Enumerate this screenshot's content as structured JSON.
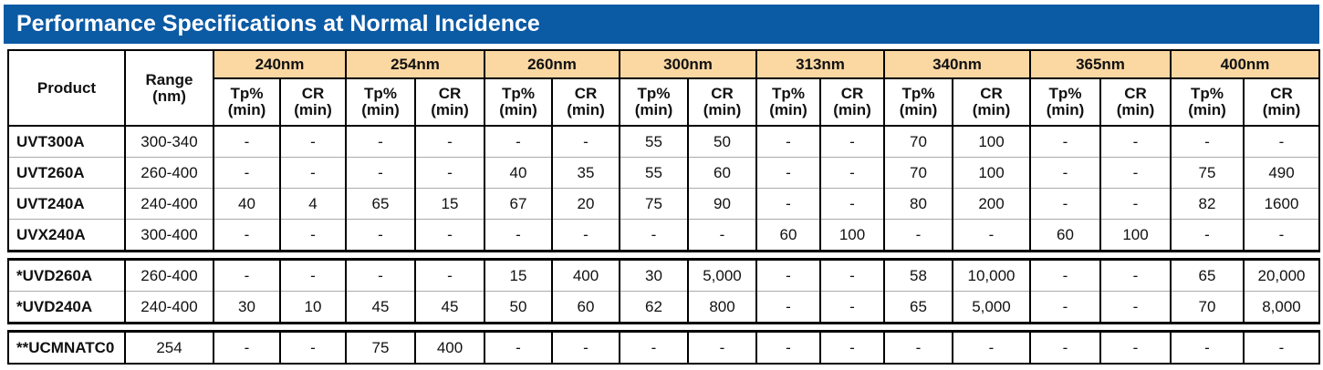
{
  "header": {
    "title": "Performance Specifications at Normal Incidence"
  },
  "table": {
    "columns": [
      "Product",
      "Range\n(nm)"
    ],
    "wavelengths": [
      {
        "label": "240nm",
        "sub": [
          "Tp%\n(min)",
          "CR\n(min)"
        ]
      },
      {
        "label": "254nm",
        "sub": [
          "Tp%\n(min)",
          "CR\n(min)"
        ]
      },
      {
        "label": "260nm",
        "sub": [
          "Tp%\n(min)",
          "CR\n(min)"
        ]
      },
      {
        "label": "300nm",
        "sub": [
          "Tp%\n(min)",
          "CR\n(min)"
        ]
      },
      {
        "label": "313nm",
        "sub": [
          "Tp%\n(min)",
          "CR\n(min)"
        ]
      },
      {
        "label": "340nm",
        "sub": [
          "Tp%\n(min)",
          "CR\n(min)"
        ]
      },
      {
        "label": "365nm",
        "sub": [
          "Tp%\n(min)",
          "CR\n(min)"
        ]
      },
      {
        "label": "400nm",
        "sub": [
          "Tp%\n(min)",
          "CR\n(min)"
        ]
      }
    ],
    "groups": [
      [
        [
          "UVT300A",
          "300-340",
          "-",
          "-",
          "-",
          "-",
          "-",
          "-",
          "55",
          "50",
          "-",
          "-",
          "70",
          "100",
          "-",
          "-",
          "-",
          "-"
        ],
        [
          "UVT260A",
          "260-400",
          "-",
          "-",
          "-",
          "-",
          "40",
          "35",
          "55",
          "60",
          "-",
          "-",
          "70",
          "100",
          "-",
          "-",
          "75",
          "490"
        ],
        [
          "UVT240A",
          "240-400",
          "40",
          "4",
          "65",
          "15",
          "67",
          "20",
          "75",
          "90",
          "-",
          "-",
          "80",
          "200",
          "-",
          "-",
          "82",
          "1600"
        ],
        [
          "UVX240A",
          "300-400",
          "-",
          "-",
          "-",
          "-",
          "-",
          "-",
          "-",
          "-",
          "60",
          "100",
          "-",
          "-",
          "60",
          "100",
          "-",
          "-"
        ]
      ],
      [
        [
          "*UVD260A",
          "260-400",
          "-",
          "-",
          "-",
          "-",
          "15",
          "400",
          "30",
          "5,000",
          "-",
          "-",
          "58",
          "10,000",
          "-",
          "-",
          "65",
          "20,000"
        ],
        [
          "*UVD240A",
          "240-400",
          "30",
          "10",
          "45",
          "45",
          "50",
          "60",
          "62",
          "800",
          "-",
          "-",
          "65",
          "5,000",
          "-",
          "-",
          "70",
          "8,000"
        ]
      ],
      [
        [
          "**UCMNATC0",
          "254",
          "-",
          "-",
          "75",
          "400",
          "-",
          "-",
          "-",
          "-",
          "-",
          "-",
          "-",
          "-",
          "-",
          "-",
          "-",
          "-"
        ]
      ]
    ]
  }
}
